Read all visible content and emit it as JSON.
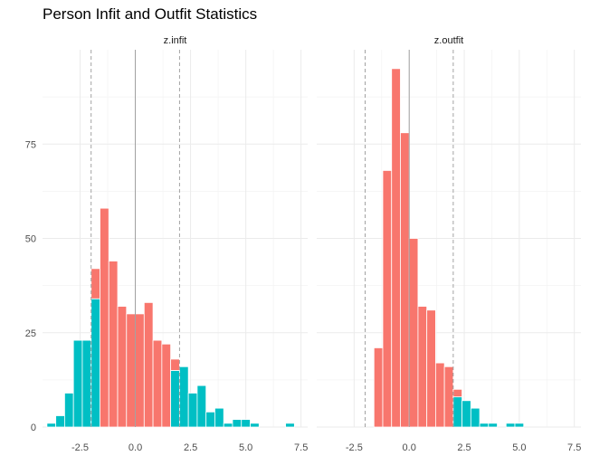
{
  "chart_data": {
    "type": "bar",
    "title": "Person Infit and Outfit Statistics",
    "xlabel": "",
    "ylabel": "",
    "xlim": [
      -4.2,
      7.8
    ],
    "ylim": [
      0,
      100
    ],
    "x_ticks": [
      -2.5,
      0.0,
      2.5,
      5.0,
      7.5
    ],
    "x_tick_labels": [
      "-2.5",
      "0.0",
      "2.5",
      "5.0",
      "7.5"
    ],
    "y_ticks": [
      0,
      25,
      50,
      75
    ],
    "y_tick_labels": [
      "0",
      "25",
      "50",
      "75"
    ],
    "grid": true,
    "legend": "none",
    "colors": {
      "within": "#F8766D",
      "outside": "#00BFC4",
      "zero_line": "#999999",
      "cutoff_line": "#999999"
    },
    "reference_lines": {
      "solid": 0,
      "dashed": [
        -2,
        2
      ]
    },
    "bin_width": 0.4,
    "panels": [
      {
        "strip": "z.infit",
        "bars": [
          {
            "x": -3.8,
            "outside": 1,
            "within": 0
          },
          {
            "x": -3.4,
            "outside": 3,
            "within": 0
          },
          {
            "x": -3.0,
            "outside": 9,
            "within": 0
          },
          {
            "x": -2.6,
            "outside": 23,
            "within": 0
          },
          {
            "x": -2.2,
            "outside": 23,
            "within": 0
          },
          {
            "x": -1.8,
            "outside": 34,
            "within": 8
          },
          {
            "x": -1.4,
            "outside": 0,
            "within": 58
          },
          {
            "x": -1.0,
            "outside": 0,
            "within": 44
          },
          {
            "x": -0.6,
            "outside": 0,
            "within": 32
          },
          {
            "x": -0.2,
            "outside": 0,
            "within": 30
          },
          {
            "x": 0.2,
            "outside": 0,
            "within": 30
          },
          {
            "x": 0.6,
            "outside": 0,
            "within": 33
          },
          {
            "x": 1.0,
            "outside": 0,
            "within": 23
          },
          {
            "x": 1.4,
            "outside": 0,
            "within": 22
          },
          {
            "x": 1.8,
            "outside": 15,
            "within": 3
          },
          {
            "x": 2.2,
            "outside": 16,
            "within": 0
          },
          {
            "x": 2.6,
            "outside": 9,
            "within": 0
          },
          {
            "x": 3.0,
            "outside": 11,
            "within": 0
          },
          {
            "x": 3.4,
            "outside": 4,
            "within": 0
          },
          {
            "x": 3.8,
            "outside": 5,
            "within": 0
          },
          {
            "x": 4.2,
            "outside": 1,
            "within": 0
          },
          {
            "x": 4.6,
            "outside": 2,
            "within": 0
          },
          {
            "x": 5.0,
            "outside": 2,
            "within": 0
          },
          {
            "x": 5.4,
            "outside": 1,
            "within": 0
          },
          {
            "x": 7.0,
            "outside": 1,
            "within": 0
          }
        ]
      },
      {
        "strip": "z.outfit",
        "bars": [
          {
            "x": -1.4,
            "outside": 0,
            "within": 21
          },
          {
            "x": -1.0,
            "outside": 0,
            "within": 68
          },
          {
            "x": -0.6,
            "outside": 0,
            "within": 95
          },
          {
            "x": -0.2,
            "outside": 0,
            "within": 78
          },
          {
            "x": 0.2,
            "outside": 0,
            "within": 50
          },
          {
            "x": 0.6,
            "outside": 0,
            "within": 32
          },
          {
            "x": 1.0,
            "outside": 0,
            "within": 31
          },
          {
            "x": 1.4,
            "outside": 0,
            "within": 17
          },
          {
            "x": 1.8,
            "outside": 0,
            "within": 16
          },
          {
            "x": 2.2,
            "outside": 8,
            "within": 2
          },
          {
            "x": 2.6,
            "outside": 7,
            "within": 0
          },
          {
            "x": 3.0,
            "outside": 5,
            "within": 0
          },
          {
            "x": 3.4,
            "outside": 1,
            "within": 0
          },
          {
            "x": 3.8,
            "outside": 1,
            "within": 0
          },
          {
            "x": 4.6,
            "outside": 1,
            "within": 0
          },
          {
            "x": 5.0,
            "outside": 1,
            "within": 0
          }
        ]
      }
    ]
  }
}
